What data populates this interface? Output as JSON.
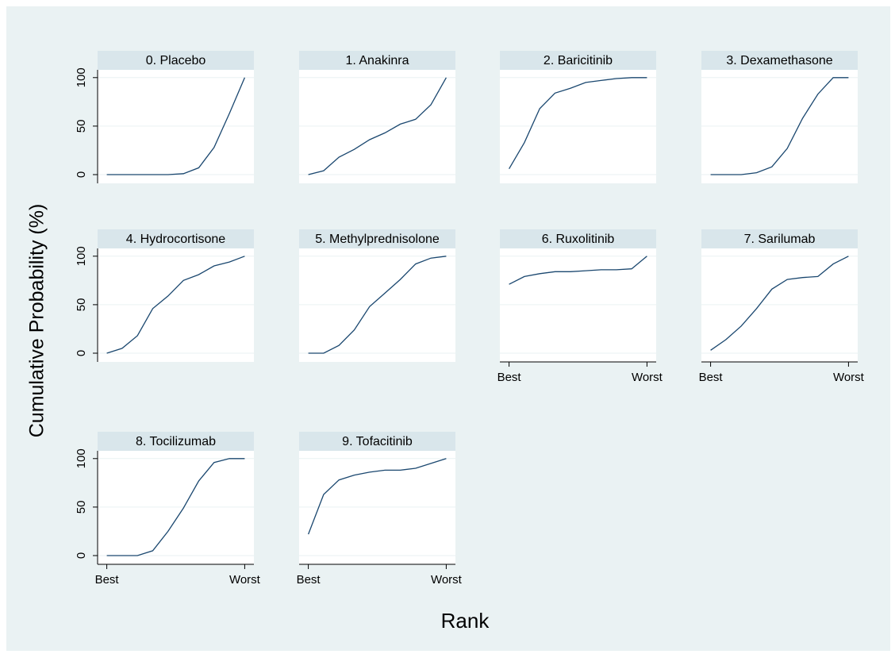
{
  "ylabel": "Cumulative Probability (%)",
  "xlabel": "Rank",
  "chart_data": [
    {
      "type": "line",
      "title": "0. Placebo",
      "x": [
        1,
        2,
        3,
        4,
        5,
        6,
        7,
        8,
        9,
        10
      ],
      "values": [
        0,
        0,
        0,
        0,
        0,
        1,
        7,
        28,
        63,
        100
      ],
      "color": "#1a476f",
      "xlim": [
        0.4,
        10.6
      ],
      "ylim": [
        -9,
        108
      ],
      "yticks": [
        0,
        50,
        100
      ],
      "grid": true
    },
    {
      "type": "line",
      "title": "1. Anakinra",
      "x": [
        1,
        2,
        3,
        4,
        5,
        6,
        7,
        8,
        9,
        10
      ],
      "values": [
        0,
        4,
        18,
        26,
        36,
        43,
        52,
        57,
        72,
        100
      ],
      "color": "#1a476f",
      "xlim": [
        0.4,
        10.6
      ],
      "ylim": [
        -9,
        108
      ],
      "yticks": [
        0,
        50,
        100
      ],
      "grid": true
    },
    {
      "type": "line",
      "title": "2. Baricitinib",
      "x": [
        1,
        2,
        3,
        4,
        5,
        6,
        7,
        8,
        9,
        10
      ],
      "values": [
        6,
        33,
        68,
        84,
        89,
        95,
        97,
        99,
        100,
        100
      ],
      "color": "#1a476f",
      "xlim": [
        0.4,
        10.6
      ],
      "ylim": [
        -9,
        108
      ],
      "yticks": [
        0,
        50,
        100
      ],
      "grid": true
    },
    {
      "type": "line",
      "title": "3. Dexamethasone",
      "x": [
        1,
        2,
        3,
        4,
        5,
        6,
        7,
        8,
        9,
        10
      ],
      "values": [
        0,
        0,
        0,
        2,
        8,
        27,
        58,
        83,
        100,
        100
      ],
      "color": "#1a476f",
      "xlim": [
        0.4,
        10.6
      ],
      "ylim": [
        -9,
        108
      ],
      "yticks": [
        0,
        50,
        100
      ],
      "grid": true
    },
    {
      "type": "line",
      "title": "4. Hydrocortisone",
      "x": [
        1,
        2,
        3,
        4,
        5,
        6,
        7,
        8,
        9,
        10
      ],
      "values": [
        0,
        5,
        18,
        46,
        59,
        75,
        81,
        90,
        94,
        100
      ],
      "color": "#1a476f",
      "xlim": [
        0.4,
        10.6
      ],
      "ylim": [
        -9,
        108
      ],
      "yticks": [
        0,
        50,
        100
      ],
      "grid": true
    },
    {
      "type": "line",
      "title": "5. Methylprednisolone",
      "x": [
        1,
        2,
        3,
        4,
        5,
        6,
        7,
        8,
        9,
        10
      ],
      "values": [
        0,
        0,
        8,
        24,
        48,
        62,
        76,
        92,
        98,
        100
      ],
      "color": "#1a476f",
      "xlim": [
        0.4,
        10.6
      ],
      "ylim": [
        -9,
        108
      ],
      "yticks": [
        0,
        50,
        100
      ],
      "grid": true
    },
    {
      "type": "line",
      "title": "6. Ruxolitinib",
      "x": [
        1,
        2,
        3,
        4,
        5,
        6,
        7,
        8,
        9,
        10
      ],
      "values": [
        71,
        79,
        82,
        84,
        84,
        85,
        86,
        86,
        87,
        100
      ],
      "color": "#1a476f",
      "xlim": [
        0.4,
        10.6
      ],
      "ylim": [
        -9,
        108
      ],
      "yticks": [
        0,
        50,
        100
      ],
      "grid": true,
      "xticks": [
        {
          "value": 1,
          "label": "Best"
        },
        {
          "value": 10,
          "label": "Worst"
        }
      ]
    },
    {
      "type": "line",
      "title": "7. Sarilumab",
      "x": [
        1,
        2,
        3,
        4,
        5,
        6,
        7,
        8,
        9,
        10
      ],
      "values": [
        3,
        14,
        28,
        46,
        66,
        76,
        78,
        79,
        92,
        100
      ],
      "color": "#1a476f",
      "xlim": [
        0.4,
        10.6
      ],
      "ylim": [
        -9,
        108
      ],
      "yticks": [
        0,
        50,
        100
      ],
      "grid": true,
      "xticks": [
        {
          "value": 1,
          "label": "Best"
        },
        {
          "value": 10,
          "label": "Worst"
        }
      ]
    },
    {
      "type": "line",
      "title": "8. Tocilizumab",
      "x": [
        1,
        2,
        3,
        4,
        5,
        6,
        7,
        8,
        9,
        10
      ],
      "values": [
        0,
        0,
        0,
        5,
        25,
        49,
        77,
        96,
        100,
        100
      ],
      "color": "#1a476f",
      "xlim": [
        0.4,
        10.6
      ],
      "ylim": [
        -9,
        108
      ],
      "yticks": [
        0,
        50,
        100
      ],
      "grid": true,
      "xticks": [
        {
          "value": 1,
          "label": "Best"
        },
        {
          "value": 10,
          "label": "Worst"
        }
      ]
    },
    {
      "type": "line",
      "title": "9. Tofacitinib",
      "x": [
        1,
        2,
        3,
        4,
        5,
        6,
        7,
        8,
        9,
        10
      ],
      "values": [
        22,
        63,
        78,
        83,
        86,
        88,
        88,
        90,
        95,
        100
      ],
      "color": "#1a476f",
      "xlim": [
        0.4,
        10.6
      ],
      "ylim": [
        -9,
        108
      ],
      "yticks": [
        0,
        50,
        100
      ],
      "grid": true,
      "xticks": [
        {
          "value": 1,
          "label": "Best"
        },
        {
          "value": 10,
          "label": "Worst"
        }
      ]
    }
  ]
}
